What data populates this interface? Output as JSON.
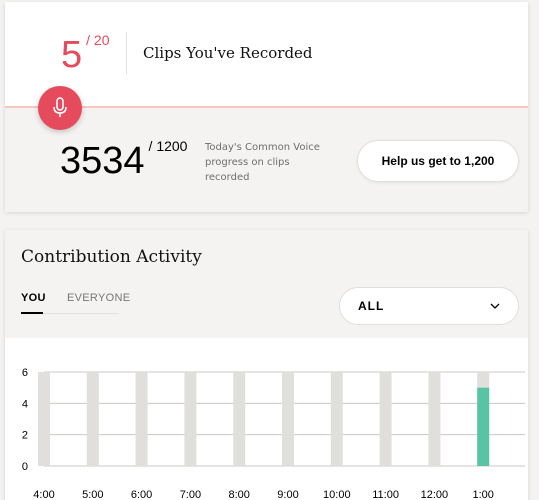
{
  "clips": {
    "count": "5",
    "goal": "/ 20",
    "label": "Clips You've Recorded"
  },
  "total": {
    "count": "3534",
    "goal": "/ 1200",
    "progress_text": "Today's Common Voice progress on clips recorded"
  },
  "help_button": {
    "label": "Help us get to 1,200"
  },
  "activity": {
    "title": "Contribution Activity",
    "tabs": [
      {
        "label": "YOU"
      },
      {
        "label": "EVERYONE"
      }
    ],
    "select": {
      "value": "ALL"
    }
  },
  "colors": {
    "accent": "#e54b5d",
    "bar_active": "#59c3a6",
    "bar_idle": "#e0dfdc"
  },
  "chart_data": {
    "type": "bar",
    "categories": [
      "4:00",
      "5:00",
      "6:00",
      "7:00",
      "8:00",
      "9:00",
      "10:00",
      "11:00",
      "12:00",
      "1:00"
    ],
    "values": [
      0,
      0,
      0,
      0,
      0,
      0,
      0,
      0,
      0,
      5
    ],
    "ylim": [
      0,
      6
    ],
    "yticks": [
      0,
      2,
      4,
      6
    ],
    "grid": true
  }
}
